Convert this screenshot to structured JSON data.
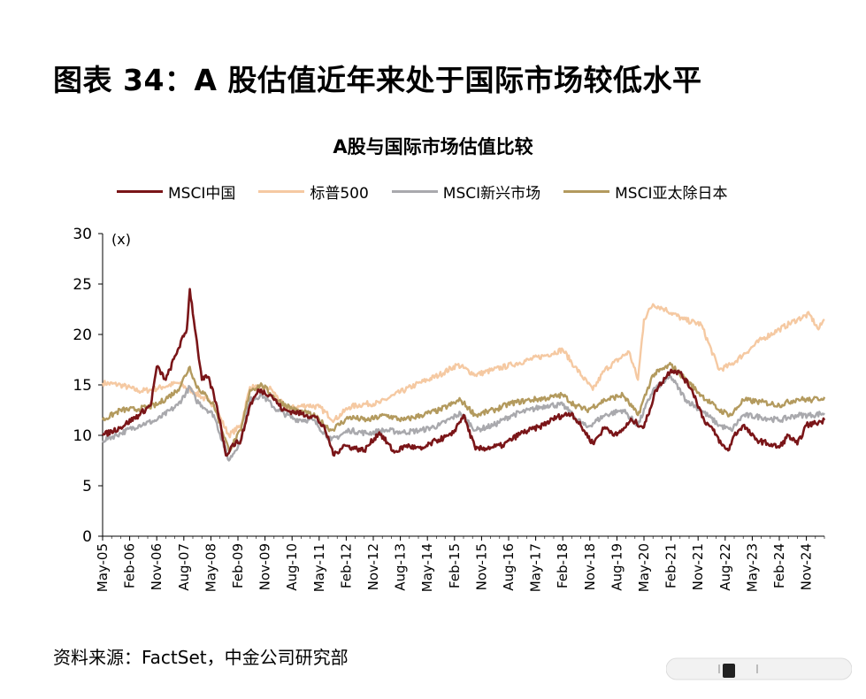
{
  "figure_title": "图表 34：A 股估值近年来处于国际市场较低水平",
  "source": "资料来源：FactSet，中金公司研究部",
  "chart_data": {
    "type": "line",
    "title": "A股与国际市场估值比较",
    "ylabel": "(x)",
    "xlabel": "",
    "ylim": [
      0,
      30
    ],
    "yticks": [
      0,
      5,
      10,
      15,
      20,
      25,
      30
    ],
    "x_range": [
      "2005-05",
      "2025-05"
    ],
    "xtick_labels": [
      "May-05",
      "Feb-06",
      "Nov-06",
      "Aug-07",
      "May-08",
      "Feb-09",
      "Nov-09",
      "Aug-10",
      "May-11",
      "Feb-12",
      "Nov-12",
      "Aug-13",
      "May-14",
      "Feb-15",
      "Nov-15",
      "Aug-16",
      "May-17",
      "Feb-18",
      "Nov-18",
      "Aug-19",
      "May-20",
      "Feb-21",
      "Nov-21",
      "Aug-22",
      "May-23",
      "Feb-24",
      "Nov-24"
    ],
    "legend_position": "top",
    "grid": false,
    "series": [
      {
        "name": "MSCI中国",
        "color": "#7a1518",
        "points": [
          [
            "2005-05",
            10.0
          ],
          [
            "2005-11",
            10.8
          ],
          [
            "2006-05",
            12.0
          ],
          [
            "2006-09",
            13.0
          ],
          [
            "2006-11",
            16.8
          ],
          [
            "2007-02",
            15.5
          ],
          [
            "2007-06",
            18.5
          ],
          [
            "2007-09",
            20.5
          ],
          [
            "2007-10",
            24.5
          ],
          [
            "2007-12",
            20.0
          ],
          [
            "2008-02",
            15.5
          ],
          [
            "2008-04",
            15.8
          ],
          [
            "2008-06",
            14.0
          ],
          [
            "2008-08",
            11.5
          ],
          [
            "2008-10",
            8.0
          ],
          [
            "2008-12",
            9.0
          ],
          [
            "2009-03",
            9.5
          ],
          [
            "2009-06",
            13.0
          ],
          [
            "2009-09",
            14.5
          ],
          [
            "2010-01",
            14.0
          ],
          [
            "2010-05",
            12.5
          ],
          [
            "2010-09",
            12.3
          ],
          [
            "2011-01",
            12.0
          ],
          [
            "2011-04",
            11.8
          ],
          [
            "2011-07",
            10.5
          ],
          [
            "2011-10",
            8.0
          ],
          [
            "2012-01",
            9.0
          ],
          [
            "2012-04",
            8.8
          ],
          [
            "2012-08",
            8.5
          ],
          [
            "2013-01",
            10.3
          ],
          [
            "2013-06",
            8.3
          ],
          [
            "2013-10",
            9.0
          ],
          [
            "2014-03",
            8.6
          ],
          [
            "2014-08",
            9.5
          ],
          [
            "2015-01",
            10.0
          ],
          [
            "2015-05",
            12.0
          ],
          [
            "2015-09",
            8.6
          ],
          [
            "2016-02",
            8.8
          ],
          [
            "2016-06",
            9.0
          ],
          [
            "2016-12",
            10.2
          ],
          [
            "2017-06",
            10.8
          ],
          [
            "2017-12",
            11.8
          ],
          [
            "2018-05",
            12.2
          ],
          [
            "2018-09",
            10.5
          ],
          [
            "2018-12",
            9.2
          ],
          [
            "2019-04",
            10.8
          ],
          [
            "2019-08",
            10.0
          ],
          [
            "2020-01",
            11.5
          ],
          [
            "2020-05",
            10.8
          ],
          [
            "2020-09",
            14.5
          ],
          [
            "2021-02",
            16.5
          ],
          [
            "2021-05",
            16.2
          ],
          [
            "2021-09",
            14.5
          ],
          [
            "2022-01",
            11.5
          ],
          [
            "2022-04",
            10.5
          ],
          [
            "2022-07",
            9.0
          ],
          [
            "2022-09",
            8.5
          ],
          [
            "2022-11",
            10.0
          ],
          [
            "2023-02",
            11.0
          ],
          [
            "2023-06",
            9.6
          ],
          [
            "2023-10",
            9.2
          ],
          [
            "2024-02",
            8.8
          ],
          [
            "2024-05",
            10.0
          ],
          [
            "2024-08",
            9.1
          ],
          [
            "2024-11",
            11.0
          ],
          [
            "2025-02",
            11.2
          ],
          [
            "2025-05",
            11.5
          ]
        ]
      },
      {
        "name": "标普500",
        "color": "#f5c9a2",
        "points": [
          [
            "2005-05",
            15.2
          ],
          [
            "2005-11",
            15.0
          ],
          [
            "2006-05",
            14.4
          ],
          [
            "2006-09",
            14.5
          ],
          [
            "2007-01",
            14.8
          ],
          [
            "2007-06",
            15.2
          ],
          [
            "2007-12",
            14.2
          ],
          [
            "2008-06",
            13.0
          ],
          [
            "2008-11",
            10.0
          ],
          [
            "2009-03",
            11.0
          ],
          [
            "2009-06",
            14.8
          ],
          [
            "2010-01",
            14.6
          ],
          [
            "2010-06",
            12.6
          ],
          [
            "2011-01",
            13.0
          ],
          [
            "2011-05",
            12.8
          ],
          [
            "2011-10",
            11.5
          ],
          [
            "2012-03",
            12.8
          ],
          [
            "2012-08",
            13.1
          ],
          [
            "2013-01",
            13.2
          ],
          [
            "2013-06",
            14.0
          ],
          [
            "2014-01",
            15.0
          ],
          [
            "2014-09",
            16.0
          ],
          [
            "2015-03",
            17.0
          ],
          [
            "2015-09",
            16.0
          ],
          [
            "2016-03",
            16.5
          ],
          [
            "2016-09",
            17.0
          ],
          [
            "2017-03",
            17.5
          ],
          [
            "2017-09",
            18.0
          ],
          [
            "2018-02",
            18.5
          ],
          [
            "2018-06",
            16.8
          ],
          [
            "2018-12",
            14.5
          ],
          [
            "2019-04",
            16.5
          ],
          [
            "2019-12",
            18.3
          ],
          [
            "2020-03",
            15.5
          ],
          [
            "2020-05",
            21.5
          ],
          [
            "2020-08",
            23.0
          ],
          [
            "2020-12",
            22.5
          ],
          [
            "2021-06",
            21.5
          ],
          [
            "2021-12",
            21.0
          ],
          [
            "2022-06",
            16.5
          ],
          [
            "2022-10",
            17.0
          ],
          [
            "2023-02",
            18.0
          ],
          [
            "2023-08",
            19.5
          ],
          [
            "2024-02",
            20.5
          ],
          [
            "2024-08",
            21.5
          ],
          [
            "2024-12",
            22.0
          ],
          [
            "2025-03",
            20.5
          ],
          [
            "2025-05",
            21.5
          ]
        ]
      },
      {
        "name": "MSCI新兴市场",
        "color": "#a9a9ad",
        "points": [
          [
            "2005-05",
            9.5
          ],
          [
            "2005-11",
            10.2
          ],
          [
            "2006-05",
            11.0
          ],
          [
            "2006-11",
            11.5
          ],
          [
            "2007-06",
            13.0
          ],
          [
            "2007-10",
            14.8
          ],
          [
            "2007-12",
            13.5
          ],
          [
            "2008-06",
            12.0
          ],
          [
            "2008-11",
            7.5
          ],
          [
            "2009-03",
            9.5
          ],
          [
            "2009-06",
            13.5
          ],
          [
            "2009-10",
            14.0
          ],
          [
            "2010-03",
            12.5
          ],
          [
            "2010-09",
            11.6
          ],
          [
            "2011-03",
            11.5
          ],
          [
            "2011-09",
            9.5
          ],
          [
            "2012-03",
            10.5
          ],
          [
            "2012-09",
            10.2
          ],
          [
            "2013-03",
            10.5
          ],
          [
            "2013-09",
            10.3
          ],
          [
            "2014-03",
            10.5
          ],
          [
            "2014-09",
            11.0
          ],
          [
            "2015-04",
            12.2
          ],
          [
            "2015-09",
            10.5
          ],
          [
            "2016-03",
            11.0
          ],
          [
            "2016-09",
            12.0
          ],
          [
            "2017-03",
            12.5
          ],
          [
            "2017-09",
            13.0
          ],
          [
            "2018-02",
            13.0
          ],
          [
            "2018-06",
            11.8
          ],
          [
            "2018-10",
            10.8
          ],
          [
            "2019-04",
            12.0
          ],
          [
            "2019-10",
            12.5
          ],
          [
            "2020-03",
            11.0
          ],
          [
            "2020-08",
            14.5
          ],
          [
            "2021-02",
            15.8
          ],
          [
            "2021-07",
            13.5
          ],
          [
            "2021-12",
            12.5
          ],
          [
            "2022-06",
            11.0
          ],
          [
            "2022-10",
            10.5
          ],
          [
            "2023-02",
            12.0
          ],
          [
            "2023-08",
            11.8
          ],
          [
            "2024-02",
            11.5
          ],
          [
            "2024-08",
            12.0
          ],
          [
            "2025-01",
            12.0
          ],
          [
            "2025-05",
            12.2
          ]
        ]
      },
      {
        "name": "MSCI亚太除日本",
        "color": "#b39a5e",
        "points": [
          [
            "2005-05",
            11.5
          ],
          [
            "2005-11",
            12.5
          ],
          [
            "2006-05",
            12.6
          ],
          [
            "2006-11",
            13.0
          ],
          [
            "2007-06",
            14.5
          ],
          [
            "2007-10",
            16.8
          ],
          [
            "2007-12",
            15.0
          ],
          [
            "2008-06",
            13.0
          ],
          [
            "2008-11",
            8.5
          ],
          [
            "2009-03",
            10.5
          ],
          [
            "2009-06",
            14.5
          ],
          [
            "2009-10",
            15.0
          ],
          [
            "2010-03",
            13.5
          ],
          [
            "2010-09",
            12.5
          ],
          [
            "2011-03",
            12.0
          ],
          [
            "2011-09",
            10.5
          ],
          [
            "2012-03",
            11.8
          ],
          [
            "2012-09",
            11.5
          ],
          [
            "2013-03",
            12.0
          ],
          [
            "2013-09",
            11.5
          ],
          [
            "2014-03",
            12.0
          ],
          [
            "2014-09",
            12.5
          ],
          [
            "2015-04",
            13.5
          ],
          [
            "2015-09",
            12.0
          ],
          [
            "2016-03",
            12.5
          ],
          [
            "2016-09",
            13.2
          ],
          [
            "2017-03",
            13.5
          ],
          [
            "2017-09",
            13.7
          ],
          [
            "2018-02",
            14.0
          ],
          [
            "2018-06",
            13.0
          ],
          [
            "2018-10",
            12.5
          ],
          [
            "2019-04",
            13.5
          ],
          [
            "2019-10",
            14.0
          ],
          [
            "2020-03",
            12.0
          ],
          [
            "2020-08",
            16.0
          ],
          [
            "2021-02",
            17.0
          ],
          [
            "2021-07",
            15.5
          ],
          [
            "2021-12",
            14.0
          ],
          [
            "2022-06",
            12.5
          ],
          [
            "2022-10",
            12.0
          ],
          [
            "2023-02",
            13.5
          ],
          [
            "2023-08",
            13.3
          ],
          [
            "2024-02",
            13.0
          ],
          [
            "2024-08",
            13.6
          ],
          [
            "2025-01",
            13.5
          ],
          [
            "2025-05",
            13.8
          ]
        ]
      }
    ]
  }
}
